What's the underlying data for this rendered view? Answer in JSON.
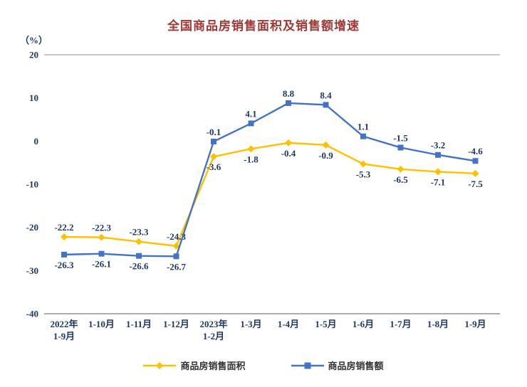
{
  "chart_data": {
    "type": "line",
    "title": "全国商品房销售面积及销售额增速",
    "unit_label": "（%）",
    "categories": [
      [
        "2022年",
        "1-9月"
      ],
      [
        "1-10月"
      ],
      [
        "1-11月"
      ],
      [
        "1-12月"
      ],
      [
        "2023年",
        "1-2月"
      ],
      [
        "1-3月"
      ],
      [
        "1-4月"
      ],
      [
        "1-5月"
      ],
      [
        "1-6月"
      ],
      [
        "1-7月"
      ],
      [
        "1-8月"
      ],
      [
        "1-9月"
      ]
    ],
    "ylim": [
      -40,
      20
    ],
    "yticks": [
      20,
      10,
      0,
      -10,
      -20,
      -30,
      -40
    ],
    "grid": "top-and-bottom-lines-only",
    "legend_position": "bottom-center",
    "series": [
      {
        "name": "商品房销售面积",
        "color": "#FFC000",
        "marker": "diamond",
        "values": [
          -22.2,
          -22.3,
          -23.3,
          -24.3,
          -3.6,
          -1.8,
          -0.4,
          -0.9,
          -5.3,
          -6.5,
          -7.1,
          -7.5
        ],
        "label_pos": [
          "above",
          "above",
          "above",
          "above",
          "below",
          "below",
          "below",
          "below",
          "below",
          "below",
          "below",
          "below"
        ]
      },
      {
        "name": "商品房销售额",
        "color": "#4472C4",
        "marker": "square",
        "values": [
          -26.3,
          -26.1,
          -26.6,
          -26.7,
          -0.1,
          4.1,
          8.8,
          8.4,
          1.1,
          -1.5,
          -3.2,
          -4.6
        ],
        "label_pos": [
          "below",
          "below",
          "below",
          "below",
          "above",
          "above",
          "above",
          "above",
          "above",
          "above",
          "above",
          "above"
        ]
      }
    ]
  }
}
